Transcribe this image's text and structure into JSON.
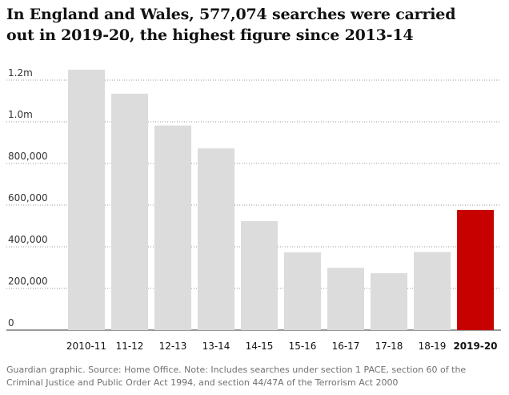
{
  "title": "In England and Wales, 577,074 searches were carried out in 2019-20, the highest figure since 2013-14",
  "footnote": "Guardian graphic. Source: Home Office. Note: Includes searches under section 1 PACE, section 60 of the Criminal Justice and Public Order Act 1994, and section 44/47A of the Terrorism Act 2000",
  "colors": {
    "bar": "#dcdcdc",
    "highlight": "#c70000",
    "grid": "#999999",
    "axis": "#333333"
  },
  "chart_data": {
    "type": "bar",
    "categories": [
      "2010-11",
      "11-12",
      "12-13",
      "13-14",
      "14-15",
      "15-16",
      "16-17",
      "17-18",
      "18-19",
      "2019-20"
    ],
    "values": [
      1250000,
      1135000,
      982000,
      872000,
      523000,
      373000,
      299000,
      273000,
      375000,
      577074
    ],
    "highlight_index": 9,
    "ylim": [
      0,
      1250000
    ],
    "yticks": [
      0,
      200000,
      400000,
      600000,
      800000,
      1000000,
      1200000
    ],
    "ytick_labels": [
      "0",
      "200,000",
      "400,000",
      "600,000",
      "800,000",
      "1.0m",
      "1.2m"
    ],
    "grid": true,
    "xlabel": "",
    "ylabel": ""
  }
}
